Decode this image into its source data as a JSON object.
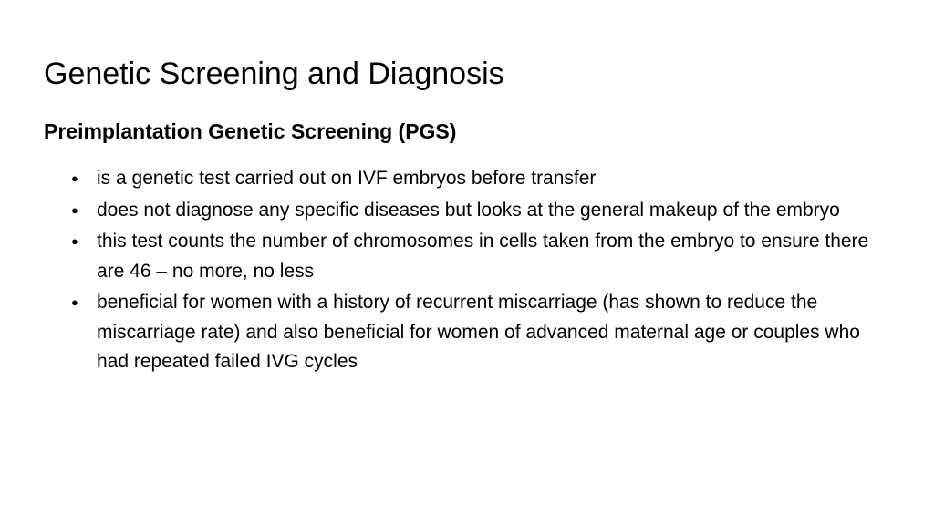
{
  "slide": {
    "title": "Genetic Screening and Diagnosis",
    "subtitle": "Preimplantation Genetic Screening (PGS)",
    "bullets": [
      "is a genetic test carried out on IVF embryos before transfer",
      "does not diagnose any specific diseases but looks at the general makeup of the embryo",
      "this test counts the number of chromosomes in cells taken from the embryo to ensure there are 46 – no more, no less",
      "beneficial for women with a history of recurrent miscarriage (has shown to reduce the miscarriage rate) and also beneficial for women of advanced maternal age or couples who had repeated failed IVG cycles"
    ]
  },
  "colors": {
    "background": "#ffffff",
    "text": "#000000"
  },
  "typography": {
    "title_fontsize": 34,
    "title_weight": 400,
    "subtitle_fontsize": 23,
    "subtitle_weight": 700,
    "body_fontsize": 21,
    "line_height": 1.55
  }
}
